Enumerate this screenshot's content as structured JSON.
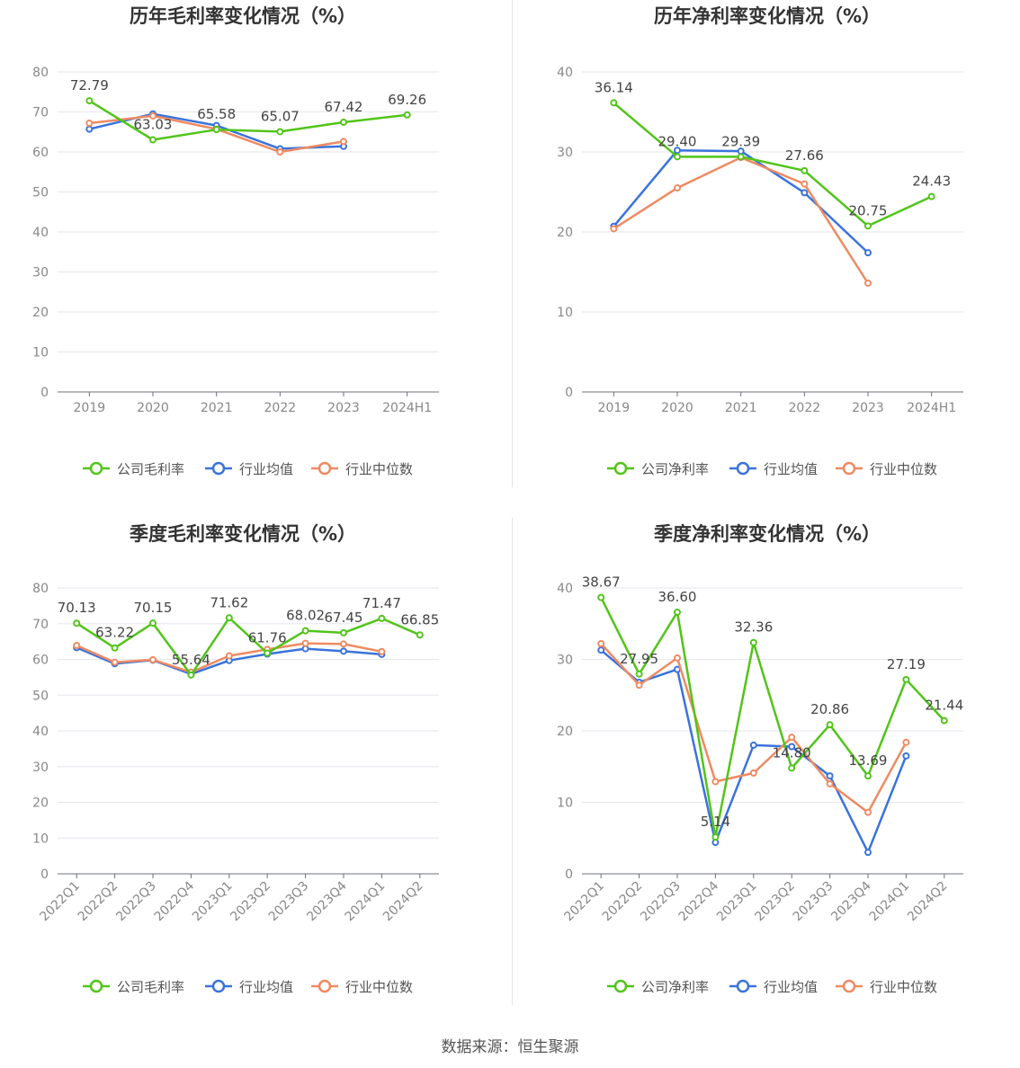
{
  "source": "数据来源：恒生聚源",
  "colors": {
    "company": "#52c41a",
    "avg": "#3a73dc",
    "median": "#ef8a62"
  },
  "chart_data": [
    {
      "type": "line",
      "title": "历年毛利率变化情况（%）",
      "categories": [
        "2019",
        "2020",
        "2021",
        "2022",
        "2023",
        "2024H1"
      ],
      "ylim": [
        0,
        80
      ],
      "yticks": [
        "0",
        "10",
        "20",
        "30",
        "40",
        "50",
        "60",
        "70",
        "80"
      ],
      "legend": [
        "公司毛利率",
        "行业均值",
        "行业中位数"
      ],
      "series": [
        {
          "name": "公司毛利率",
          "values": [
            72.79,
            63.03,
            65.58,
            65.07,
            67.42,
            69.26
          ],
          "labels": [
            "72.79",
            "63.03",
            "65.58",
            "65.07",
            "67.42",
            "69.26"
          ]
        },
        {
          "name": "行业均值",
          "values": [
            65.7,
            69.5,
            66.6,
            60.8,
            61.4,
            null
          ]
        },
        {
          "name": "行业中位数",
          "values": [
            67.2,
            69.0,
            65.7,
            60.0,
            62.6,
            null
          ]
        }
      ]
    },
    {
      "type": "line",
      "title": "历年净利率变化情况（%）",
      "categories": [
        "2019",
        "2020",
        "2021",
        "2022",
        "2023",
        "2024H1"
      ],
      "ylim": [
        0,
        40
      ],
      "yticks": [
        "0",
        "10",
        "20",
        "30",
        "40"
      ],
      "legend": [
        "公司净利率",
        "行业均值",
        "行业中位数"
      ],
      "series": [
        {
          "name": "公司净利率",
          "values": [
            36.14,
            29.4,
            29.39,
            27.66,
            20.75,
            24.43
          ],
          "labels": [
            "36.14",
            "29.40",
            "29.39",
            "27.66",
            "20.75",
            "24.43"
          ]
        },
        {
          "name": "行业均值",
          "values": [
            20.7,
            30.2,
            30.1,
            24.9,
            17.4,
            null
          ]
        },
        {
          "name": "行业中位数",
          "values": [
            20.4,
            25.5,
            29.3,
            26.0,
            13.6,
            null
          ]
        }
      ]
    },
    {
      "type": "line",
      "title": "季度毛利率变化情况（%）",
      "categories": [
        "2022Q1",
        "2022Q2",
        "2022Q3",
        "2022Q4",
        "2023Q1",
        "2023Q2",
        "2023Q3",
        "2023Q4",
        "2024Q1",
        "2024Q2"
      ],
      "ylim": [
        0,
        80
      ],
      "yticks": [
        "0",
        "10",
        "20",
        "30",
        "40",
        "50",
        "60",
        "70",
        "80"
      ],
      "legend": [
        "公司毛利率",
        "行业均值",
        "行业中位数"
      ],
      "series": [
        {
          "name": "公司毛利率",
          "values": [
            70.13,
            63.22,
            70.15,
            55.64,
            71.62,
            61.76,
            68.02,
            67.45,
            71.47,
            66.85
          ],
          "labels": [
            "70.13",
            "63.22",
            "70.15",
            "55.64",
            "71.62",
            "61.76",
            "68.02",
            "67.45",
            "71.47",
            "66.85"
          ]
        },
        {
          "name": "行业均值",
          "values": [
            63.3,
            58.8,
            59.8,
            55.9,
            59.7,
            61.5,
            63.0,
            62.3,
            61.4,
            null
          ]
        },
        {
          "name": "行业中位数",
          "values": [
            63.9,
            59.2,
            59.9,
            56.4,
            61.0,
            62.8,
            64.5,
            64.3,
            62.2,
            null
          ]
        }
      ]
    },
    {
      "type": "line",
      "title": "季度净利率变化情况（%）",
      "categories": [
        "2022Q1",
        "2022Q2",
        "2022Q3",
        "2022Q4",
        "2023Q1",
        "2023Q2",
        "2023Q3",
        "2023Q4",
        "2024Q1",
        "2024Q2"
      ],
      "ylim": [
        0,
        40
      ],
      "yticks": [
        "0",
        "10",
        "20",
        "30",
        "40"
      ],
      "legend": [
        "公司净利率",
        "行业均值",
        "行业中位数"
      ],
      "series": [
        {
          "name": "公司净利率",
          "values": [
            38.67,
            27.95,
            36.6,
            5.14,
            32.36,
            14.8,
            20.86,
            13.69,
            27.19,
            21.44
          ],
          "labels": [
            "38.67",
            "27.95",
            "36.60",
            "5.14",
            "32.36",
            "14.80",
            "20.86",
            "13.69",
            "27.19",
            "21.44"
          ]
        },
        {
          "name": "行业均值",
          "values": [
            31.3,
            26.8,
            28.6,
            4.4,
            18.0,
            17.8,
            13.7,
            3.0,
            16.5,
            null
          ]
        },
        {
          "name": "行业中位数",
          "values": [
            32.2,
            26.4,
            30.2,
            12.9,
            14.1,
            19.1,
            12.6,
            8.6,
            18.4,
            null
          ]
        }
      ]
    }
  ]
}
